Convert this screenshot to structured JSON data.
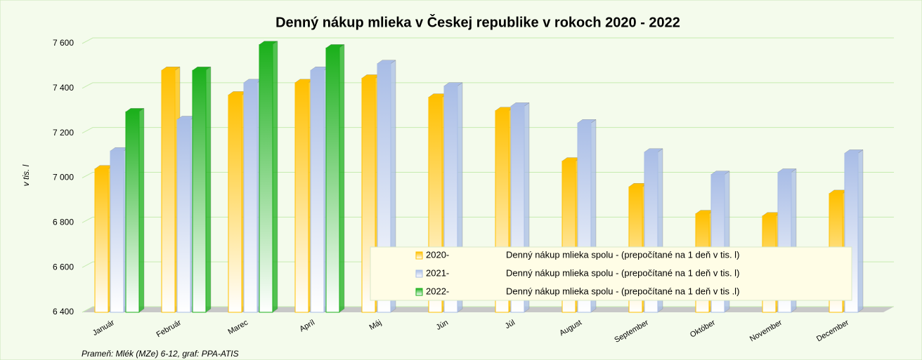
{
  "chart_data": {
    "type": "bar",
    "title": "Denný nákup mlieka v Českej republike v rokoch 2020 - 2022",
    "y_label": "v tis. l",
    "source": "Prameň: Mlék (MZe) 6-12, graf: PPA-ATIS",
    "categories": [
      "Január",
      "Február",
      "Marec",
      "Apríl",
      "Máj",
      "Jún",
      "Júl",
      "August",
      "September",
      "Október",
      "November",
      "December"
    ],
    "series": [
      {
        "name": "2020-",
        "description": "Denný nákup mlieka spolu - (prepočítané na 1 deň v tis. l)",
        "color": "#ffc000",
        "values": [
          7040,
          7480,
          7370,
          7425,
          7445,
          7360,
          7300,
          7075,
          6960,
          6840,
          6830,
          6930
        ]
      },
      {
        "name": "2021-",
        "description": "Denný nákup mlieka spolu - (prepočítané na 1 deň v tis. l)",
        "color": "#a9bde6",
        "values": [
          7120,
          7260,
          7425,
          7480,
          7510,
          7410,
          7320,
          7245,
          7115,
          7015,
          7025,
          7110
        ]
      },
      {
        "name": "2022-",
        "description": "Denný nákup mlieka spolu - (prepočítané na 1 deň v tis .l)",
        "color": "#1cb01c",
        "values": [
          7295,
          7480,
          7595,
          7580,
          null,
          null,
          null,
          null,
          null,
          null,
          null,
          null
        ]
      }
    ],
    "ylim": [
      6400,
      7600
    ],
    "yticks": [
      {
        "value": 6400,
        "label": "6 400"
      },
      {
        "value": 6600,
        "label": "6 600"
      },
      {
        "value": 6800,
        "label": "6 800"
      },
      {
        "value": 7000,
        "label": "7 000"
      },
      {
        "value": 7200,
        "label": "7 200"
      },
      {
        "value": 7400,
        "label": "7 400"
      },
      {
        "value": 7600,
        "label": "7 600"
      }
    ],
    "grid": true
  }
}
